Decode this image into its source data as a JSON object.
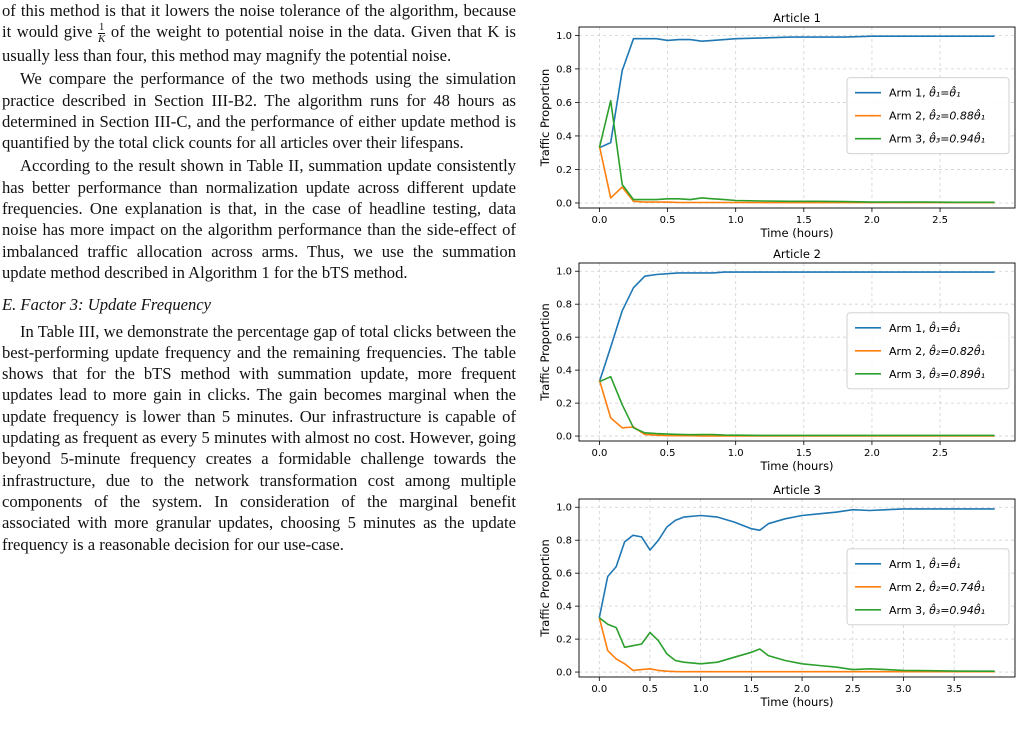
{
  "text": {
    "p1_a": "of this method is that it lowers the noise tolerance of the algorithm, because it would give ",
    "p1_frac_num": "1",
    "p1_frac_den": "K",
    "p1_b": " of the weight to potential noise in the data. Given that K is usually less than four, this method may magnify the potential noise.",
    "p2": "We compare the performance of the two methods using the simulation practice described in Section III-B2. The algorithm runs for 48 hours as determined in Section III-C, and the performance of either update method is quantified by the total click counts for all articles over their lifespans.",
    "p3": "According to the result shown in Table II, summation update consistently has better performance than normalization update across different update frequencies. One explanation is that, in the case of headline testing, data noise has more impact on the algorithm performance than the side-effect of imbalanced traffic allocation across arms. Thus, we use the summation update method described in Algorithm 1 for the bTS method.",
    "heading": "E.  Factor 3: Update Frequency",
    "p4": "In Table III, we demonstrate the percentage gap of total clicks between the best-performing update frequency and the remaining frequencies. The table shows that for the bTS method with summation update, more frequent updates lead to more gain in clicks. The gain becomes marginal when the update frequency is lower than 5 minutes. Our infrastructure is capable of updating as frequent as every 5 minutes with almost no cost. However, going beyond 5-minute frequency creates a formidable challenge towards the infrastructure, due to the network transformation cost among multiple components of the system. In consideration of the marginal benefit associated with more granular updates, choosing 5 minutes as the update frequency is a reasonable decision for our use-case."
  },
  "colors": {
    "arm1": "#1f77b4",
    "arm2": "#ff7f0e",
    "arm3": "#2ca02c"
  },
  "chart_data": [
    {
      "type": "line",
      "title": "Article 1",
      "xlabel": "Time (hours)",
      "ylabel": "Traffic Proportion",
      "xlim": [
        -0.15,
        3.05
      ],
      "ylim": [
        -0.03,
        1.05
      ],
      "xticks": [
        "0.0",
        "0.5",
        "1.0",
        "1.5",
        "2.0",
        "2.5"
      ],
      "yticks": [
        "0.0",
        "0.2",
        "0.4",
        "0.6",
        "0.8",
        "1.0"
      ],
      "grid": true,
      "legend_position": "center-right",
      "x": [
        0,
        0.083,
        0.167,
        0.25,
        0.333,
        0.417,
        0.5,
        0.583,
        0.667,
        0.75,
        0.833,
        0.917,
        1.0,
        1.2,
        1.4,
        1.6,
        1.8,
        2.0,
        2.2,
        2.4,
        2.6,
        2.8,
        2.9
      ],
      "series": [
        {
          "name": "Arm 1, θ̂₁=θ̂₁",
          "legend_label": "Arm 1, ",
          "legend_math": "θ̂₁=θ̂₁",
          "values": [
            0.33,
            0.36,
            0.79,
            0.98,
            0.98,
            0.98,
            0.97,
            0.975,
            0.975,
            0.965,
            0.97,
            0.975,
            0.98,
            0.985,
            0.99,
            0.99,
            0.99,
            0.995,
            0.995,
            0.995,
            0.995,
            0.995,
            0.995
          ]
        },
        {
          "name": "Arm 2, θ̂₂=0.88θ̂₁",
          "legend_label": "Arm 2, ",
          "legend_math": "θ̂₂=0.88θ̂₁",
          "values": [
            0.34,
            0.03,
            0.095,
            0.01,
            0.005,
            0.005,
            0.005,
            0.003,
            0.003,
            0.003,
            0.003,
            0.003,
            0.003,
            0.002,
            0.002,
            0.002,
            0.002,
            0.002,
            0.002,
            0.002,
            0.002,
            0.002,
            0.002
          ]
        },
        {
          "name": "Arm 3, θ̂₃=0.94θ̂₁",
          "legend_label": "Arm 3, ",
          "legend_math": "θ̂₃=0.94θ̂₁",
          "values": [
            0.33,
            0.61,
            0.11,
            0.02,
            0.02,
            0.02,
            0.025,
            0.025,
            0.02,
            0.03,
            0.025,
            0.02,
            0.015,
            0.012,
            0.01,
            0.01,
            0.008,
            0.005,
            0.005,
            0.005,
            0.004,
            0.004,
            0.004
          ]
        }
      ]
    },
    {
      "type": "line",
      "title": "Article 2",
      "xlabel": "Time (hours)",
      "ylabel": "Traffic Proportion",
      "xlim": [
        -0.15,
        3.05
      ],
      "ylim": [
        -0.03,
        1.05
      ],
      "xticks": [
        "0.0",
        "0.5",
        "1.0",
        "1.5",
        "2.0",
        "2.5"
      ],
      "yticks": [
        "0.0",
        "0.2",
        "0.4",
        "0.6",
        "0.8",
        "1.0"
      ],
      "grid": true,
      "legend_position": "center-right",
      "x": [
        0,
        0.083,
        0.167,
        0.25,
        0.333,
        0.417,
        0.5,
        0.583,
        0.667,
        0.75,
        0.833,
        0.917,
        1.0,
        1.2,
        1.4,
        1.6,
        1.8,
        2.0,
        2.2,
        2.4,
        2.6,
        2.8,
        2.9
      ],
      "series": [
        {
          "name": "Arm 1, θ̂₁=θ̂₁",
          "legend_label": "Arm 1, ",
          "legend_math": "θ̂₁=θ̂₁",
          "values": [
            0.33,
            0.54,
            0.76,
            0.9,
            0.97,
            0.98,
            0.985,
            0.99,
            0.99,
            0.99,
            0.99,
            0.995,
            0.995,
            0.995,
            0.995,
            0.995,
            0.995,
            0.995,
            0.995,
            0.995,
            0.995,
            0.995,
            0.995
          ]
        },
        {
          "name": "Arm 2, θ̂₂=0.82θ̂₁",
          "legend_label": "Arm 2, ",
          "legend_math": "θ̂₂=0.82θ̂₁",
          "values": [
            0.34,
            0.11,
            0.05,
            0.055,
            0.01,
            0.005,
            0.003,
            0.002,
            0.002,
            0.001,
            0.001,
            0.001,
            0.001,
            0.001,
            0.001,
            0.001,
            0.001,
            0.001,
            0.001,
            0.001,
            0.001,
            0.001,
            0.001
          ]
        },
        {
          "name": "Arm 3, θ̂₃=0.89θ̂₁",
          "legend_label": "Arm 3, ",
          "legend_math": "θ̂₃=0.89θ̂₁",
          "values": [
            0.33,
            0.36,
            0.19,
            0.05,
            0.02,
            0.015,
            0.012,
            0.01,
            0.008,
            0.009,
            0.009,
            0.006,
            0.005,
            0.004,
            0.004,
            0.004,
            0.004,
            0.004,
            0.004,
            0.004,
            0.004,
            0.004,
            0.004
          ]
        }
      ]
    },
    {
      "type": "line",
      "title": "Article 3",
      "xlabel": "Time (hours)",
      "ylabel": "Traffic Proportion",
      "xlim": [
        -0.2,
        4.1
      ],
      "ylim": [
        -0.03,
        1.05
      ],
      "xticks": [
        "0.0",
        "0.5",
        "1.0",
        "1.5",
        "2.0",
        "2.5",
        "3.0",
        "3.5"
      ],
      "yticks": [
        "0.0",
        "0.2",
        "0.4",
        "0.6",
        "0.8",
        "1.0"
      ],
      "grid": true,
      "legend_position": "center-right",
      "x": [
        0,
        0.083,
        0.167,
        0.25,
        0.333,
        0.417,
        0.5,
        0.583,
        0.667,
        0.75,
        0.833,
        1.0,
        1.167,
        1.333,
        1.5,
        1.583,
        1.667,
        1.833,
        2.0,
        2.167,
        2.333,
        2.5,
        2.667,
        2.833,
        3.0,
        3.25,
        3.5,
        3.75,
        3.9
      ],
      "series": [
        {
          "name": "Arm 1, θ̂₁=θ̂₁",
          "legend_label": "Arm 1, ",
          "legend_math": "θ̂₁=θ̂₁",
          "values": [
            0.33,
            0.58,
            0.64,
            0.79,
            0.83,
            0.82,
            0.74,
            0.8,
            0.88,
            0.92,
            0.94,
            0.95,
            0.94,
            0.91,
            0.87,
            0.86,
            0.9,
            0.93,
            0.95,
            0.96,
            0.97,
            0.985,
            0.98,
            0.985,
            0.99,
            0.99,
            0.99,
            0.99,
            0.99
          ]
        },
        {
          "name": "Arm 2, θ̂₂=0.74θ̂₁",
          "legend_label": "Arm 2, ",
          "legend_math": "θ̂₂=0.74θ̂₁",
          "values": [
            0.33,
            0.13,
            0.08,
            0.05,
            0.01,
            0.015,
            0.02,
            0.01,
            0.005,
            0.003,
            0.002,
            0.002,
            0.002,
            0.002,
            0.002,
            0.002,
            0.002,
            0.002,
            0.002,
            0.002,
            0.002,
            0.002,
            0.002,
            0.002,
            0.002,
            0.002,
            0.002,
            0.002,
            0.002
          ]
        },
        {
          "name": "Arm 3, θ̂₃=0.94θ̂₁",
          "legend_label": "Arm 3, ",
          "legend_math": "θ̂₃=0.94θ̂₁",
          "values": [
            0.33,
            0.29,
            0.27,
            0.15,
            0.16,
            0.17,
            0.24,
            0.19,
            0.11,
            0.07,
            0.06,
            0.05,
            0.06,
            0.09,
            0.12,
            0.14,
            0.1,
            0.07,
            0.05,
            0.04,
            0.03,
            0.015,
            0.02,
            0.015,
            0.01,
            0.008,
            0.006,
            0.005,
            0.005
          ]
        }
      ]
    }
  ]
}
